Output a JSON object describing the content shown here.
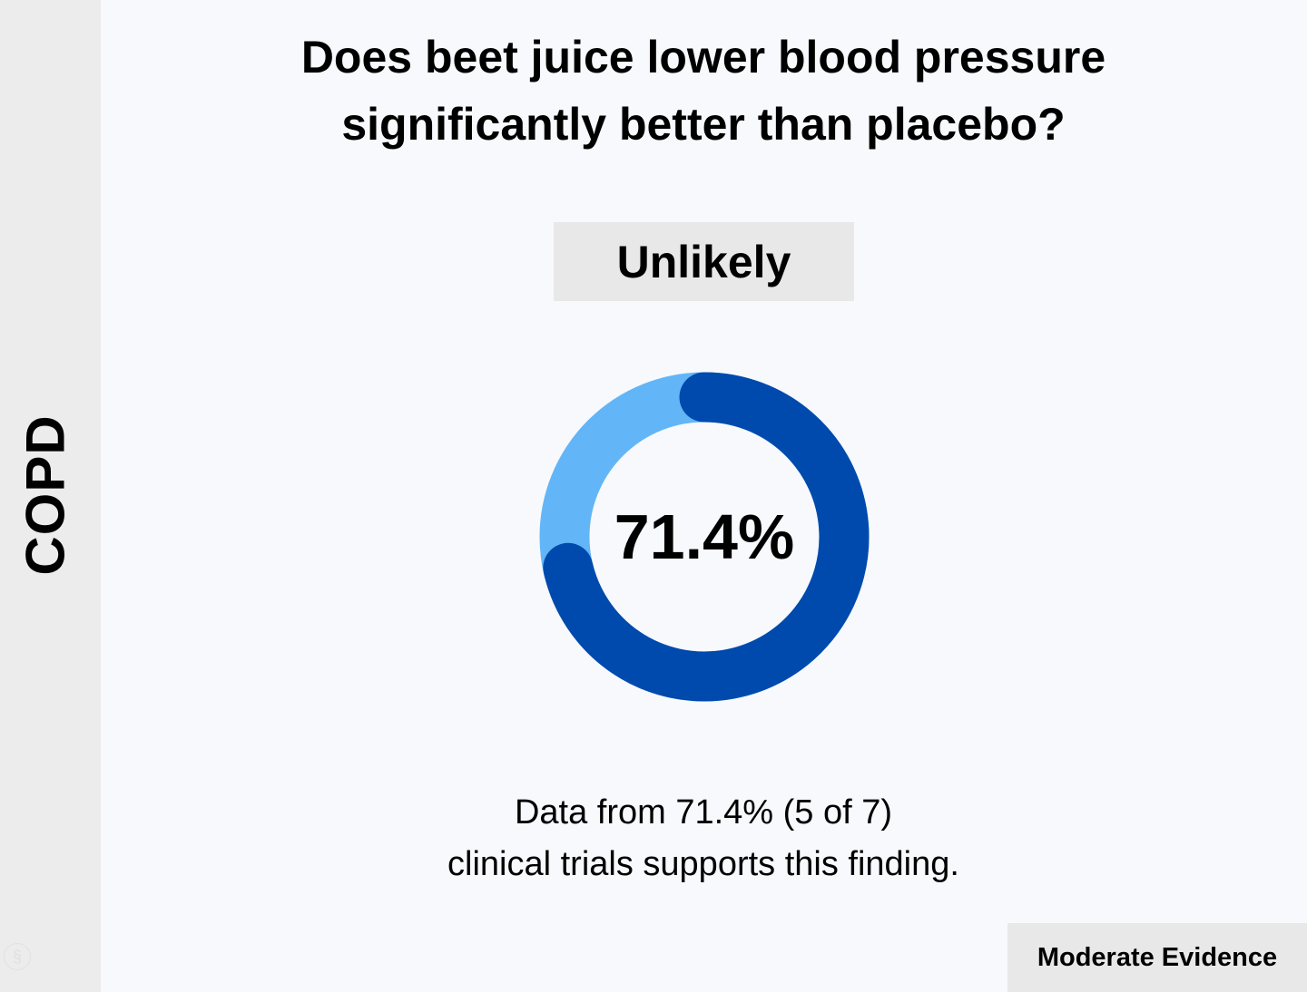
{
  "sidebar": {
    "label": "COPD"
  },
  "question": {
    "line1": "Does beet juice lower blood pressure",
    "line2": "significantly better than placebo?"
  },
  "verdict": "Unlikely",
  "summary": {
    "line1": "Data from 71.4% (5 of 7)",
    "line2": "clinical trials supports this finding."
  },
  "evidence_level": "Moderate Evidence",
  "chart_data": {
    "type": "pie",
    "center_label": "71.4%",
    "slices": [
      {
        "value": 5,
        "color": "#004aad"
      },
      {
        "value": 2,
        "color": "#62b6f7"
      }
    ],
    "total": 7,
    "percent": 71.4
  }
}
